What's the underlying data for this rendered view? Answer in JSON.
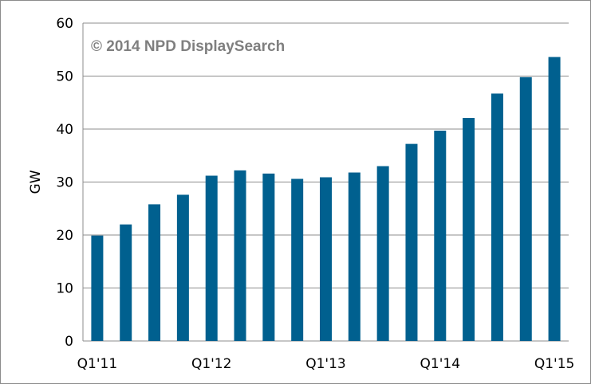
{
  "chart_data": {
    "type": "bar",
    "title": "",
    "xlabel": "",
    "ylabel": "GW",
    "ylim": [
      0,
      60
    ],
    "yticks": [
      0,
      10,
      20,
      30,
      40,
      50,
      60
    ],
    "x_tick_labels": [
      "Q1'11",
      "Q1'12",
      "Q1'13",
      "Q1'14",
      "Q1'15"
    ],
    "x_tick_label_every": 4,
    "values": [
      19.9,
      22.0,
      25.8,
      27.6,
      31.2,
      32.2,
      31.6,
      30.6,
      30.9,
      31.8,
      33.0,
      37.2,
      39.7,
      42.1,
      46.7,
      49.8,
      53.6
    ],
    "grid": "horizontal",
    "bar_color": "#00608f",
    "watermark": "© 2014 NPD DisplaySearch"
  }
}
